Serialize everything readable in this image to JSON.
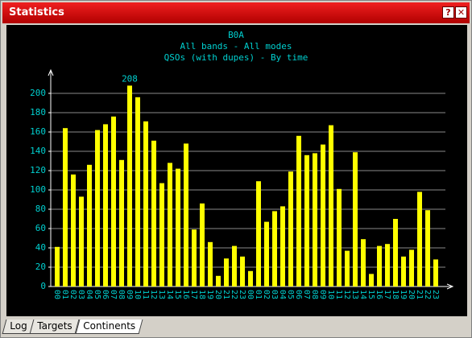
{
  "window": {
    "title": "Statistics"
  },
  "tabs": [
    "Log",
    "Targets",
    "Continents"
  ],
  "chart_data": {
    "type": "bar",
    "title": "B0A",
    "subtitles": [
      "All bands - All modes",
      "QSOs (with dupes) - By time"
    ],
    "categories": [
      "00",
      "01",
      "02",
      "03",
      "04",
      "05",
      "06",
      "07",
      "08",
      "09",
      "10",
      "11",
      "12",
      "13",
      "14",
      "15",
      "16",
      "17",
      "18",
      "19",
      "20",
      "21",
      "22",
      "23",
      "00",
      "01",
      "02",
      "03",
      "04",
      "05",
      "06",
      "07",
      "08",
      "09",
      "10",
      "11",
      "12",
      "13",
      "14",
      "15",
      "16",
      "17",
      "18",
      "19",
      "20",
      "21",
      "22",
      "23"
    ],
    "values": [
      41,
      164,
      116,
      93,
      126,
      162,
      168,
      176,
      131,
      208,
      196,
      171,
      151,
      107,
      128,
      122,
      148,
      59,
      86,
      46,
      11,
      29,
      42,
      31,
      16,
      109,
      67,
      78,
      83,
      119,
      156,
      136,
      138,
      147,
      167,
      101,
      37,
      139,
      49,
      13,
      42,
      44,
      70,
      31,
      38,
      98,
      79,
      28
    ],
    "color": "#ffff00",
    "ylim": [
      0,
      220
    ],
    "yticks": [
      0,
      20,
      40,
      60,
      80,
      100,
      120,
      140,
      160,
      180,
      200
    ],
    "grid": true
  }
}
